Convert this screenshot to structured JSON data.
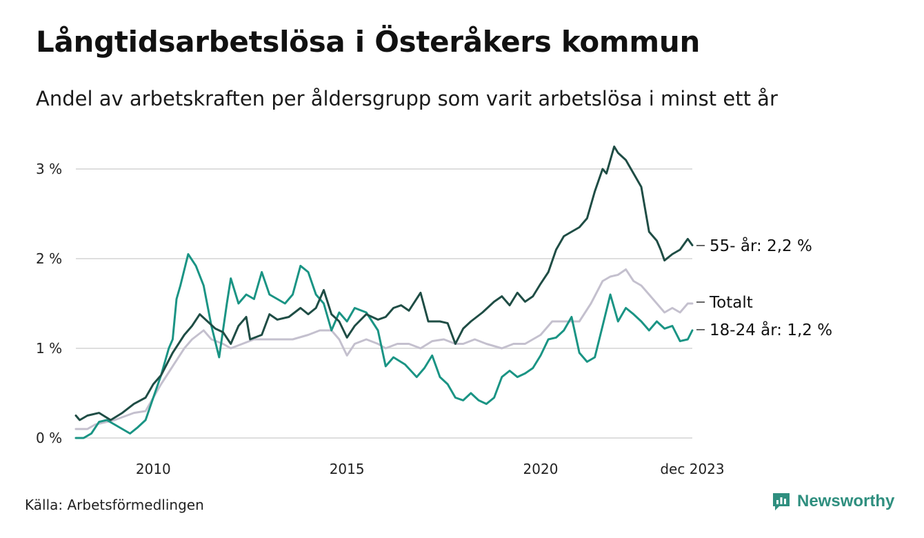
{
  "header": {
    "title": "Långtidsarbetslösa i Österåkers kommun",
    "subtitle": "Andel av arbetskraften per åldersgrupp som varit arbetslösa i minst ett år"
  },
  "footer": {
    "source": "Källa: Arbetsförmedlingen",
    "brand": "Newsworthy"
  },
  "colors": {
    "older": "#1f4d45",
    "total": "#c4c0ce",
    "young": "#1a9484",
    "grid": "#dedede",
    "brand": "#2f8f7f"
  },
  "chart_data": {
    "type": "line",
    "title": "Långtidsarbetslösa i Österåkers kommun",
    "subtitle": "Andel av arbetskraften per åldersgrupp som varit arbetslösa i minst ett år",
    "x_range": [
      2008.0,
      2023.917
    ],
    "ylim": [
      0,
      3.3
    ],
    "y_ticks": [
      0,
      1,
      2,
      3
    ],
    "y_tick_labels": [
      "0 %",
      "1 %",
      "2 %",
      "3 %"
    ],
    "x_ticks": [
      2010,
      2015,
      2020,
      2023.917
    ],
    "x_tick_labels": [
      "2010",
      "2015",
      "2020",
      "dec 2023"
    ],
    "grid": true,
    "series": [
      {
        "name": "55- år",
        "end_label": "55- år: 2,2 %",
        "color_key": "older",
        "points": [
          [
            2008.0,
            0.25
          ],
          [
            2008.1,
            0.2
          ],
          [
            2008.3,
            0.25
          ],
          [
            2008.6,
            0.28
          ],
          [
            2008.9,
            0.2
          ],
          [
            2009.2,
            0.28
          ],
          [
            2009.5,
            0.38
          ],
          [
            2009.8,
            0.45
          ],
          [
            2010.0,
            0.6
          ],
          [
            2010.2,
            0.7
          ],
          [
            2010.5,
            0.95
          ],
          [
            2010.8,
            1.15
          ],
          [
            2011.0,
            1.25
          ],
          [
            2011.2,
            1.38
          ],
          [
            2011.4,
            1.3
          ],
          [
            2011.6,
            1.22
          ],
          [
            2011.8,
            1.18
          ],
          [
            2012.0,
            1.05
          ],
          [
            2012.2,
            1.25
          ],
          [
            2012.4,
            1.35
          ],
          [
            2012.5,
            1.1
          ],
          [
            2012.8,
            1.15
          ],
          [
            2013.0,
            1.38
          ],
          [
            2013.2,
            1.32
          ],
          [
            2013.5,
            1.35
          ],
          [
            2013.8,
            1.45
          ],
          [
            2014.0,
            1.38
          ],
          [
            2014.2,
            1.45
          ],
          [
            2014.4,
            1.65
          ],
          [
            2014.6,
            1.38
          ],
          [
            2014.8,
            1.3
          ],
          [
            2015.0,
            1.12
          ],
          [
            2015.2,
            1.25
          ],
          [
            2015.5,
            1.38
          ],
          [
            2015.8,
            1.32
          ],
          [
            2016.0,
            1.35
          ],
          [
            2016.2,
            1.45
          ],
          [
            2016.4,
            1.48
          ],
          [
            2016.6,
            1.42
          ],
          [
            2016.9,
            1.62
          ],
          [
            2017.1,
            1.3
          ],
          [
            2017.4,
            1.3
          ],
          [
            2017.6,
            1.28
          ],
          [
            2017.8,
            1.05
          ],
          [
            2018.0,
            1.22
          ],
          [
            2018.2,
            1.3
          ],
          [
            2018.5,
            1.4
          ],
          [
            2018.8,
            1.52
          ],
          [
            2019.0,
            1.58
          ],
          [
            2019.2,
            1.48
          ],
          [
            2019.4,
            1.62
          ],
          [
            2019.6,
            1.52
          ],
          [
            2019.8,
            1.58
          ],
          [
            2020.0,
            1.72
          ],
          [
            2020.2,
            1.85
          ],
          [
            2020.4,
            2.1
          ],
          [
            2020.6,
            2.25
          ],
          [
            2020.8,
            2.3
          ],
          [
            2021.0,
            2.35
          ],
          [
            2021.2,
            2.45
          ],
          [
            2021.4,
            2.75
          ],
          [
            2021.6,
            3.0
          ],
          [
            2021.7,
            2.95
          ],
          [
            2021.9,
            3.25
          ],
          [
            2022.0,
            3.18
          ],
          [
            2022.2,
            3.1
          ],
          [
            2022.4,
            2.95
          ],
          [
            2022.6,
            2.8
          ],
          [
            2022.8,
            2.3
          ],
          [
            2023.0,
            2.2
          ],
          [
            2023.1,
            2.1
          ],
          [
            2023.2,
            1.98
          ],
          [
            2023.4,
            2.05
          ],
          [
            2023.6,
            2.1
          ],
          [
            2023.8,
            2.22
          ],
          [
            2023.917,
            2.15
          ]
        ]
      },
      {
        "name": "Totalt",
        "end_label": "Totalt",
        "color_key": "total",
        "points": [
          [
            2008.0,
            0.1
          ],
          [
            2008.3,
            0.1
          ],
          [
            2008.5,
            0.15
          ],
          [
            2009.0,
            0.2
          ],
          [
            2009.5,
            0.28
          ],
          [
            2009.8,
            0.3
          ],
          [
            2010.0,
            0.45
          ],
          [
            2010.2,
            0.6
          ],
          [
            2010.5,
            0.8
          ],
          [
            2010.8,
            1.0
          ],
          [
            2011.0,
            1.1
          ],
          [
            2011.3,
            1.2
          ],
          [
            2011.5,
            1.1
          ],
          [
            2011.8,
            1.05
          ],
          [
            2012.0,
            1.0
          ],
          [
            2012.3,
            1.05
          ],
          [
            2012.6,
            1.1
          ],
          [
            2013.0,
            1.1
          ],
          [
            2013.3,
            1.1
          ],
          [
            2013.6,
            1.1
          ],
          [
            2014.0,
            1.15
          ],
          [
            2014.3,
            1.2
          ],
          [
            2014.6,
            1.2
          ],
          [
            2014.8,
            1.1
          ],
          [
            2015.0,
            0.92
          ],
          [
            2015.2,
            1.05
          ],
          [
            2015.5,
            1.1
          ],
          [
            2015.8,
            1.05
          ],
          [
            2016.0,
            1.0
          ],
          [
            2016.3,
            1.05
          ],
          [
            2016.6,
            1.05
          ],
          [
            2016.9,
            1.0
          ],
          [
            2017.2,
            1.08
          ],
          [
            2017.5,
            1.1
          ],
          [
            2017.8,
            1.05
          ],
          [
            2018.0,
            1.05
          ],
          [
            2018.3,
            1.1
          ],
          [
            2018.6,
            1.05
          ],
          [
            2019.0,
            1.0
          ],
          [
            2019.3,
            1.05
          ],
          [
            2019.6,
            1.05
          ],
          [
            2020.0,
            1.15
          ],
          [
            2020.3,
            1.3
          ],
          [
            2020.6,
            1.3
          ],
          [
            2021.0,
            1.3
          ],
          [
            2021.3,
            1.5
          ],
          [
            2021.6,
            1.75
          ],
          [
            2021.8,
            1.8
          ],
          [
            2022.0,
            1.82
          ],
          [
            2022.2,
            1.88
          ],
          [
            2022.4,
            1.75
          ],
          [
            2022.6,
            1.7
          ],
          [
            2022.8,
            1.6
          ],
          [
            2023.0,
            1.5
          ],
          [
            2023.2,
            1.4
          ],
          [
            2023.4,
            1.45
          ],
          [
            2023.6,
            1.4
          ],
          [
            2023.8,
            1.5
          ],
          [
            2023.917,
            1.5
          ]
        ]
      },
      {
        "name": "18-24 år",
        "end_label": "18-24 år: 1,2 %",
        "color_key": "young",
        "points": [
          [
            2008.0,
            0.0
          ],
          [
            2008.2,
            0.0
          ],
          [
            2008.4,
            0.05
          ],
          [
            2008.6,
            0.18
          ],
          [
            2008.8,
            0.2
          ],
          [
            2009.0,
            0.15
          ],
          [
            2009.2,
            0.1
          ],
          [
            2009.4,
            0.05
          ],
          [
            2009.6,
            0.12
          ],
          [
            2009.8,
            0.2
          ],
          [
            2010.0,
            0.45
          ],
          [
            2010.2,
            0.7
          ],
          [
            2010.4,
            1.0
          ],
          [
            2010.5,
            1.1
          ],
          [
            2010.6,
            1.55
          ],
          [
            2010.7,
            1.7
          ],
          [
            2010.9,
            2.05
          ],
          [
            2011.1,
            1.92
          ],
          [
            2011.3,
            1.7
          ],
          [
            2011.5,
            1.25
          ],
          [
            2011.7,
            0.9
          ],
          [
            2011.9,
            1.5
          ],
          [
            2012.0,
            1.78
          ],
          [
            2012.2,
            1.5
          ],
          [
            2012.4,
            1.6
          ],
          [
            2012.6,
            1.55
          ],
          [
            2012.8,
            1.85
          ],
          [
            2013.0,
            1.6
          ],
          [
            2013.2,
            1.55
          ],
          [
            2013.4,
            1.5
          ],
          [
            2013.6,
            1.6
          ],
          [
            2013.8,
            1.92
          ],
          [
            2014.0,
            1.85
          ],
          [
            2014.2,
            1.6
          ],
          [
            2014.4,
            1.5
          ],
          [
            2014.6,
            1.2
          ],
          [
            2014.8,
            1.4
          ],
          [
            2015.0,
            1.3
          ],
          [
            2015.2,
            1.45
          ],
          [
            2015.5,
            1.4
          ],
          [
            2015.8,
            1.2
          ],
          [
            2016.0,
            0.8
          ],
          [
            2016.2,
            0.9
          ],
          [
            2016.5,
            0.82
          ],
          [
            2016.8,
            0.68
          ],
          [
            2017.0,
            0.78
          ],
          [
            2017.2,
            0.92
          ],
          [
            2017.4,
            0.68
          ],
          [
            2017.6,
            0.6
          ],
          [
            2017.8,
            0.45
          ],
          [
            2018.0,
            0.42
          ],
          [
            2018.2,
            0.5
          ],
          [
            2018.4,
            0.42
          ],
          [
            2018.6,
            0.38
          ],
          [
            2018.8,
            0.45
          ],
          [
            2019.0,
            0.68
          ],
          [
            2019.2,
            0.75
          ],
          [
            2019.4,
            0.68
          ],
          [
            2019.6,
            0.72
          ],
          [
            2019.8,
            0.78
          ],
          [
            2020.0,
            0.92
          ],
          [
            2020.2,
            1.1
          ],
          [
            2020.4,
            1.12
          ],
          [
            2020.6,
            1.2
          ],
          [
            2020.8,
            1.35
          ],
          [
            2021.0,
            0.95
          ],
          [
            2021.2,
            0.85
          ],
          [
            2021.4,
            0.9
          ],
          [
            2021.6,
            1.25
          ],
          [
            2021.8,
            1.6
          ],
          [
            2022.0,
            1.3
          ],
          [
            2022.2,
            1.45
          ],
          [
            2022.4,
            1.38
          ],
          [
            2022.6,
            1.3
          ],
          [
            2022.8,
            1.2
          ],
          [
            2023.0,
            1.3
          ],
          [
            2023.2,
            1.22
          ],
          [
            2023.4,
            1.25
          ],
          [
            2023.6,
            1.08
          ],
          [
            2023.8,
            1.1
          ],
          [
            2023.917,
            1.2
          ]
        ]
      }
    ]
  }
}
